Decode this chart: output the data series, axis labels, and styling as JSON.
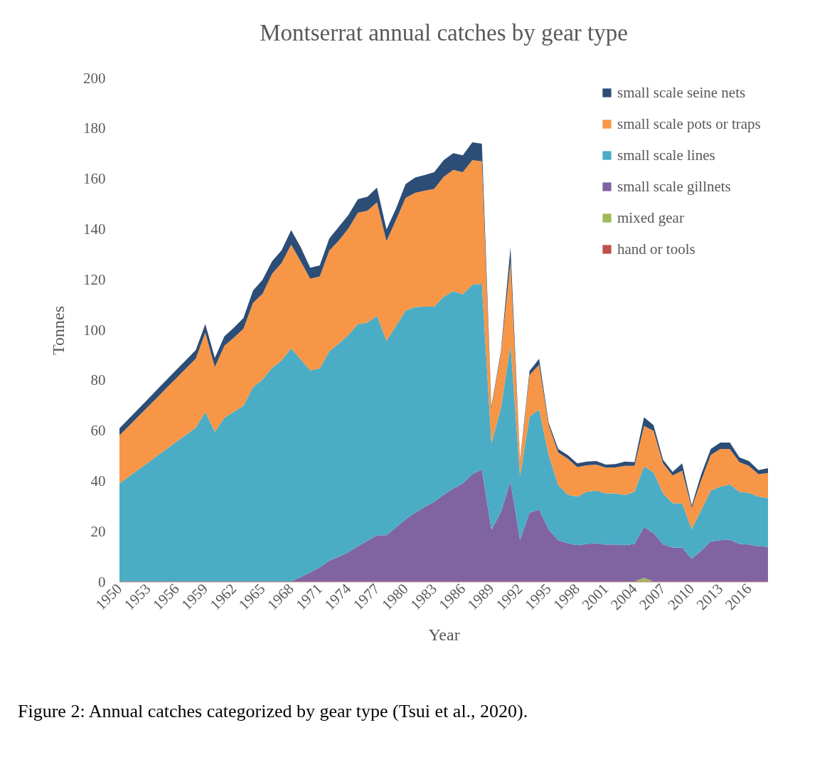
{
  "chart_data": {
    "type": "area",
    "title": "Montserrat annual catches by gear type",
    "xlabel": "Year",
    "ylabel": "Tonnes",
    "stacked": true,
    "grid": false,
    "legend": "top right",
    "x": [
      1950,
      1951,
      1952,
      1953,
      1954,
      1955,
      1956,
      1957,
      1958,
      1959,
      1960,
      1961,
      1962,
      1963,
      1964,
      1965,
      1966,
      1967,
      1968,
      1969,
      1970,
      1971,
      1972,
      1973,
      1974,
      1975,
      1976,
      1977,
      1978,
      1979,
      1980,
      1981,
      1982,
      1983,
      1984,
      1985,
      1986,
      1987,
      1988,
      1989,
      1990,
      1991,
      1992,
      1993,
      1994,
      1995,
      1996,
      1997,
      1998,
      1999,
      2000,
      2001,
      2002,
      2003,
      2004,
      2005,
      2006,
      2007,
      2008,
      2009,
      2010,
      2011,
      2012,
      2013,
      2014,
      2015,
      2016,
      2017,
      2018
    ],
    "xlim": [
      1950,
      2018
    ],
    "xticks": [
      1950,
      1953,
      1956,
      1959,
      1962,
      1965,
      1968,
      1971,
      1974,
      1977,
      1980,
      1983,
      1986,
      1989,
      1992,
      1995,
      1998,
      2001,
      2004,
      2007,
      2010,
      2013,
      2016
    ],
    "ylim": [
      0,
      200
    ],
    "yticks": [
      0,
      20,
      40,
      60,
      80,
      100,
      120,
      140,
      160,
      180,
      200
    ],
    "series": [
      {
        "name": "hand or tools",
        "color": "#c0504d",
        "values": [
          0.2,
          0.2,
          0.2,
          0.2,
          0.2,
          0.2,
          0.2,
          0.2,
          0.2,
          0.2,
          0.2,
          0.2,
          0.2,
          0.2,
          0.2,
          0.2,
          0.2,
          0.2,
          0.2,
          0.2,
          0.2,
          0.2,
          0.2,
          0.2,
          0.2,
          0.2,
          0.2,
          0.2,
          0.2,
          0.2,
          0.2,
          0.2,
          0.2,
          0.2,
          0.2,
          0.2,
          0.2,
          0.2,
          0.2,
          0.2,
          0.2,
          0.2,
          0.2,
          0.2,
          0.2,
          0.2,
          0.2,
          0.2,
          0.2,
          0.2,
          0.2,
          0.2,
          0.2,
          0.2,
          0.2,
          0.2,
          0.2,
          0.2,
          0.2,
          0.2,
          0.2,
          0.2,
          0.2,
          0.2,
          0.2,
          0.2,
          0.2,
          0.2,
          0.2
        ]
      },
      {
        "name": "mixed gear",
        "color": "#9bbb59",
        "values": [
          0,
          0,
          0,
          0,
          0,
          0,
          0,
          0,
          0,
          0,
          0,
          0,
          0,
          0,
          0,
          0,
          0,
          0,
          0,
          0,
          0,
          0,
          0,
          0,
          0,
          0,
          0,
          0,
          0,
          0,
          0,
          0,
          0,
          0,
          0,
          0,
          0,
          0,
          0,
          0,
          0,
          0,
          0,
          0,
          0,
          0,
          0,
          0,
          0,
          0,
          0,
          0,
          0,
          0,
          0,
          1.5,
          0,
          0,
          0,
          0,
          0,
          0,
          0,
          0,
          0,
          0,
          0,
          0,
          0
        ]
      },
      {
        "name": "small scale gillnets",
        "color": "#8064a2",
        "values": [
          0,
          0,
          0,
          0,
          0,
          0,
          0,
          0,
          0,
          0,
          0,
          0,
          0,
          0,
          0,
          0,
          0,
          0,
          0,
          1.8,
          3.6,
          5.6,
          8.3,
          9.8,
          11.6,
          14,
          16.2,
          18.4,
          18.4,
          21.5,
          24.7,
          27.3,
          29.6,
          31.6,
          34.5,
          36.9,
          38.9,
          42.6,
          44.5,
          20.5,
          27.6,
          39.7,
          16.5,
          27.3,
          28.6,
          20.6,
          16.4,
          15.2,
          14.4,
          14.9,
          15.2,
          14.6,
          14.7,
          14.4,
          14.9,
          20.1,
          19.2,
          14.7,
          13.5,
          13.5,
          9,
          12.2,
          15.9,
          16.4,
          16.6,
          14.9,
          14.7,
          14,
          13.8
        ]
      },
      {
        "name": "small scale lines",
        "color": "#4bacc6",
        "values": [
          38.9,
          41.7,
          44.5,
          47.2,
          50,
          52.8,
          55.6,
          58.3,
          61,
          67.3,
          59.4,
          65,
          67.4,
          69.8,
          77.1,
          80.2,
          84.8,
          87.7,
          92.6,
          86.4,
          80.2,
          79,
          83.1,
          84.6,
          86.2,
          88.2,
          86.6,
          87.1,
          77.1,
          80,
          82.8,
          81.7,
          79.5,
          77.5,
          78.6,
          78.4,
          75.1,
          75.2,
          73.7,
          34.3,
          41.2,
          54.3,
          25.3,
          38.2,
          39.7,
          29.6,
          21.9,
          19.3,
          19.3,
          20.7,
          20.9,
          20.4,
          20.3,
          19.9,
          20.7,
          24.1,
          24.1,
          20.3,
          17.6,
          17.5,
          11.8,
          16.1,
          20.2,
          21.2,
          22,
          20.7,
          20.5,
          19.7,
          19.3
        ]
      },
      {
        "name": "small scale pots or traps",
        "color": "#f79646",
        "values": [
          19.1,
          20.1,
          21.1,
          22.2,
          23.2,
          24.3,
          25.3,
          26.4,
          27.5,
          31.5,
          25.7,
          28.6,
          29.4,
          30.6,
          33.5,
          34,
          37.4,
          38.7,
          41.2,
          38.9,
          36.4,
          36.5,
          40,
          41,
          42.3,
          44.2,
          44.4,
          45.1,
          39.6,
          42.1,
          44.8,
          45.3,
          46.1,
          46.8,
          47.6,
          48.1,
          48.5,
          49.5,
          48.6,
          14,
          22,
          32.9,
          6,
          16.5,
          17.7,
          11.9,
          12.9,
          14.3,
          11.7,
          10.5,
          10.3,
          10.2,
          10.3,
          11.6,
          10.3,
          16,
          16.5,
          11.9,
          11,
          13,
          8.4,
          11.9,
          14.1,
          15,
          14,
          11.8,
          10.7,
          8.9,
          10
        ]
      },
      {
        "name": "small scale seine nets",
        "color": "#2c4d75",
        "values": [
          2.8,
          2.9,
          3,
          3.1,
          3.2,
          3.2,
          3.3,
          3.3,
          3.4,
          3.4,
          3.7,
          3.7,
          4,
          4.2,
          4.9,
          5.6,
          4.9,
          5.1,
          5.7,
          5.7,
          4.4,
          4.4,
          4.8,
          5.4,
          5.4,
          5.4,
          5.6,
          5.8,
          4.7,
          4.5,
          5.5,
          6.1,
          6.2,
          6.6,
          6.6,
          6.7,
          6.7,
          7.1,
          7,
          0.8,
          0.8,
          5.8,
          0.5,
          1.6,
          2.4,
          1,
          1.4,
          1.4,
          1.5,
          1.5,
          1.4,
          1.2,
          1.3,
          1.7,
          1.5,
          3.5,
          2.3,
          1.4,
          1.4,
          2.9,
          1,
          2.4,
          2.4,
          2.6,
          2.6,
          1.9,
          1.9,
          1.6,
          1.9
        ]
      }
    ],
    "annotations": [
      "Figure 2: Annual catches categorized by gear type (Tsui et al., 2020)."
    ]
  }
}
